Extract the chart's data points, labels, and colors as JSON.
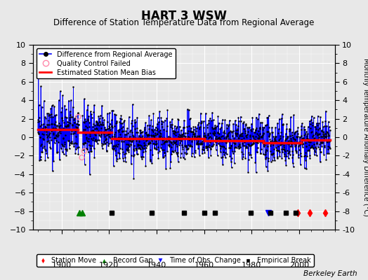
{
  "title": "HART 3 WSW",
  "subtitle": "Difference of Station Temperature Data from Regional Average",
  "ylabel_right": "Monthly Temperature Anomaly Difference (°C)",
  "ylabel_attribution": "Berkeley Earth",
  "ylim": [
    -10,
    10
  ],
  "yticks": [
    -10,
    -8,
    -6,
    -4,
    -2,
    0,
    2,
    4,
    6,
    8,
    10
  ],
  "xlim": [
    1888,
    2015
  ],
  "xticks": [
    1900,
    1920,
    1940,
    1960,
    1980,
    2000
  ],
  "x_start": 1890,
  "x_end": 2013,
  "seed": 42,
  "bias_segments": [
    {
      "x_start": 1890,
      "x_end": 1907,
      "bias": 0.8
    },
    {
      "x_start": 1907,
      "x_end": 1921,
      "bias": 0.5
    },
    {
      "x_start": 1921,
      "x_end": 1960,
      "bias": -0.15
    },
    {
      "x_start": 1960,
      "x_end": 1985,
      "bias": -0.35
    },
    {
      "x_start": 1985,
      "x_end": 2001,
      "bias": -0.6
    },
    {
      "x_start": 2001,
      "x_end": 2013,
      "bias": -0.3
    }
  ],
  "gap_start": 1907.3,
  "gap_end": 1908.7,
  "station_moves": [
    1999.5,
    2004.5,
    2011.0
  ],
  "record_gaps": [
    1907.5,
    1908.5
  ],
  "obs_changes": [
    1987.0
  ],
  "empirical_breaks": [
    1921.0,
    1938.0,
    1951.5,
    1960.0,
    1964.5,
    1979.5,
    1988.0,
    1994.5,
    1998.5
  ],
  "qc_years": [
    1907.0,
    1908.5,
    1909.5
  ],
  "qc_vals": [
    2.2,
    -2.2,
    -1.5
  ],
  "marker_y": -8.2,
  "data_color": "#0000ff",
  "bias_color": "#ff0000",
  "qc_color": "#ff88aa",
  "bg_color": "#e8e8e8",
  "grid_color": "#ffffff",
  "title_fontsize": 12,
  "subtitle_fontsize": 8.5,
  "label_fontsize": 7,
  "tick_fontsize": 8,
  "figsize": [
    5.24,
    4.0
  ],
  "dpi": 100
}
